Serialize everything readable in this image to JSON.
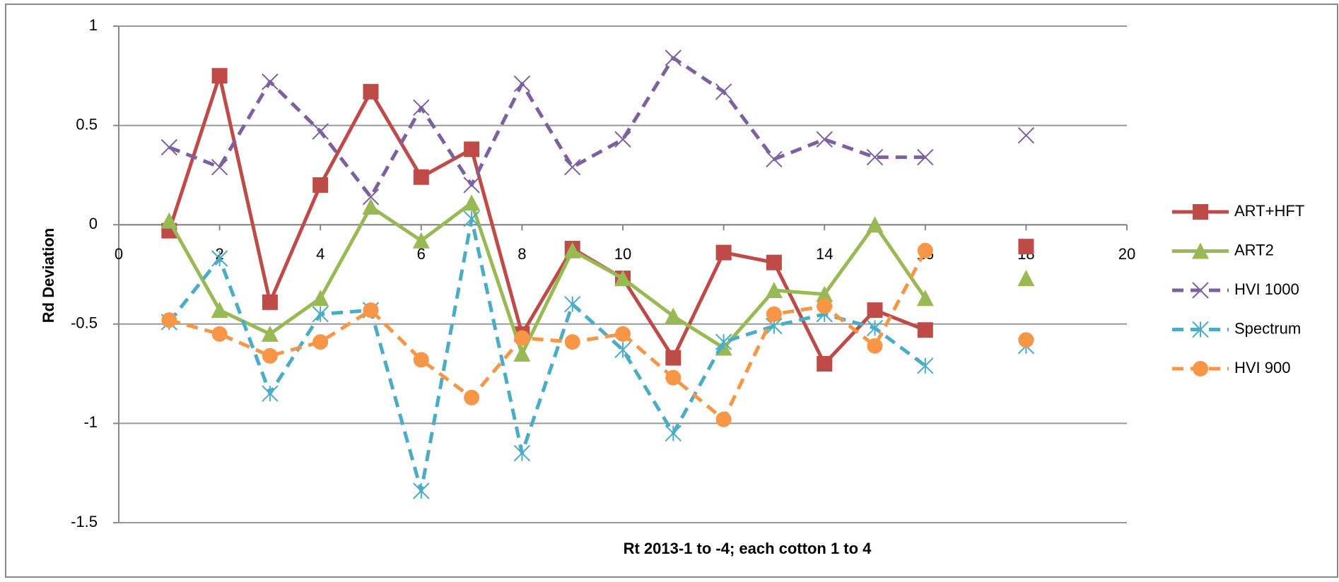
{
  "chart_data": {
    "type": "line",
    "x_label": "Rt 2013-1 to -4; each cotton 1 to 4",
    "y_label": "Rd Deviation",
    "x": [
      1,
      2,
      3,
      4,
      5,
      6,
      7,
      8,
      9,
      10,
      11,
      12,
      13,
      14,
      15,
      16,
      17,
      18
    ],
    "xlim": [
      0,
      20
    ],
    "xticks": [
      0,
      2,
      4,
      6,
      8,
      10,
      12,
      14,
      16,
      18,
      20
    ],
    "ylim": [
      -1.5,
      1
    ],
    "yticks": [
      1,
      0.5,
      0,
      -0.5,
      -1,
      -1.5
    ],
    "grid": true,
    "legend": "right",
    "series": [
      {
        "name": "ART+HFT",
        "color": "#be4b48",
        "marker": "square",
        "dashed": false,
        "values": [
          -0.03,
          0.75,
          -0.39,
          0.2,
          0.67,
          0.24,
          0.38,
          -0.55,
          -0.12,
          -0.27,
          -0.67,
          -0.14,
          -0.19,
          -0.7,
          -0.43,
          -0.53,
          null,
          -0.11
        ]
      },
      {
        "name": "ART2",
        "color": "#98b954",
        "marker": "triangle",
        "dashed": false,
        "values": [
          0.02,
          -0.43,
          -0.55,
          -0.37,
          0.09,
          -0.08,
          0.11,
          -0.65,
          -0.13,
          -0.27,
          -0.46,
          -0.62,
          -0.33,
          -0.35,
          0.0,
          -0.37,
          null,
          -0.27
        ]
      },
      {
        "name": "HVI 1000",
        "color": "#7d60a0",
        "marker": "x",
        "dashed": true,
        "values": [
          0.39,
          0.29,
          0.72,
          0.47,
          0.14,
          0.59,
          0.2,
          0.71,
          0.29,
          0.43,
          0.84,
          0.67,
          0.33,
          0.43,
          0.34,
          0.34,
          null,
          0.45
        ]
      },
      {
        "name": "Spectrum",
        "color": "#4bacc6",
        "marker": "star",
        "dashed": true,
        "values": [
          -0.49,
          -0.17,
          -0.85,
          -0.45,
          -0.43,
          -1.34,
          0.03,
          -1.15,
          -0.4,
          -0.63,
          -1.05,
          -0.59,
          -0.51,
          -0.45,
          -0.52,
          -0.71,
          null,
          -0.61
        ]
      },
      {
        "name": "HVI 900",
        "color": "#f79646",
        "marker": "circle",
        "dashed": true,
        "values": [
          -0.48,
          -0.55,
          -0.66,
          -0.59,
          -0.43,
          -0.68,
          -0.87,
          -0.57,
          -0.59,
          -0.55,
          -0.77,
          -0.98,
          -0.45,
          -0.41,
          -0.61,
          -0.13,
          null,
          -0.58
        ]
      }
    ]
  }
}
